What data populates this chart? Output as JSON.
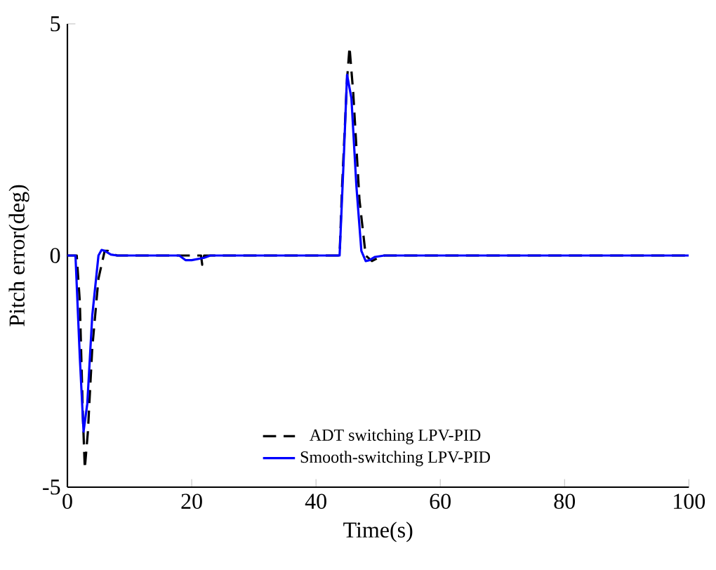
{
  "chart_data": {
    "type": "line",
    "xlabel": "Time(s)",
    "ylabel": "Pitch error(deg)",
    "xlim": [
      0,
      100
    ],
    "ylim": [
      -5,
      5
    ],
    "xticks": [
      0,
      20,
      40,
      60,
      80,
      100
    ],
    "yticks": [
      -5,
      0,
      5
    ],
    "legend": "bottom",
    "grid": false,
    "marker": "none",
    "series": [
      {
        "name": "ADT switching LPV-PID",
        "color": "#000000",
        "line_style": "dashed",
        "x": [
          0,
          1.5,
          2,
          2.5,
          2.8,
          3.3,
          4,
          5,
          6,
          6.5,
          7,
          8,
          10,
          18,
          20,
          21.5,
          21.7,
          22,
          23,
          30,
          40,
          43.8,
          44.2,
          45,
          45.4,
          46,
          47,
          48,
          49,
          50,
          51,
          55,
          100
        ],
        "values": [
          0,
          0,
          -1,
          -3.5,
          -4.6,
          -3.8,
          -2,
          -0.5,
          0.1,
          0.1,
          0.05,
          0,
          0,
          0,
          0,
          0,
          -0.2,
          0,
          0,
          0,
          0,
          0,
          1.5,
          3.8,
          4.5,
          3.5,
          1.2,
          0,
          -0.12,
          -0.05,
          0,
          0,
          0
        ]
      },
      {
        "name": "Smooth-switching LPV-PID",
        "color": "#0000ff",
        "line_style": "solid",
        "x": [
          0,
          1,
          1.3,
          2,
          2.6,
          3.2,
          4,
          5,
          5.5,
          6,
          7,
          8,
          10,
          18,
          19,
          20,
          22,
          23,
          30,
          40,
          43.5,
          43.8,
          44.5,
          45,
          45.7,
          46.5,
          47.3,
          48,
          48.6,
          49.5,
          51,
          55,
          100
        ],
        "values": [
          0,
          0,
          0,
          -2.2,
          -3.8,
          -3.2,
          -1.3,
          0,
          0.12,
          0.1,
          0.02,
          0,
          0,
          0,
          -0.1,
          -0.1,
          -0.05,
          0,
          0,
          0,
          0,
          0,
          2.2,
          3.9,
          3.4,
          1.5,
          0.1,
          -0.12,
          -0.1,
          -0.03,
          0,
          0,
          0
        ]
      }
    ]
  }
}
